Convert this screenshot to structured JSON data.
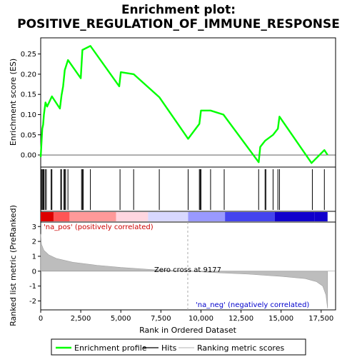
{
  "chart_data": {
    "type": "line",
    "title_line1": "Enrichment plot:",
    "title_line2": "POSITIVE_REGULATION_OF_IMMUNE_RESPONSE",
    "es_panel": {
      "ylabel": "Enrichment score (ES)",
      "ylim": [
        -0.03,
        0.29
      ],
      "yticks": [
        "0.00",
        "0.05",
        "0.10",
        "0.15",
        "0.20",
        "0.25"
      ],
      "ytick_values": [
        0.0,
        0.05,
        0.1,
        0.15,
        0.2,
        0.25
      ],
      "line_color": "#00ff00",
      "series": [
        {
          "name": "Enrichment profile",
          "x": [
            0,
            50,
            100,
            150,
            200,
            300,
            400,
            700,
            1200,
            1300,
            1400,
            1500,
            1700,
            2500,
            2600,
            3100,
            4900,
            5000,
            5800,
            7400,
            9200,
            9900,
            10000,
            10600,
            11400,
            13600,
            13700,
            14000,
            14500,
            14800,
            14900,
            16900,
            17700,
            17900
          ],
          "y": [
            -0.005,
            0.03,
            0.065,
            0.075,
            0.1,
            0.13,
            0.12,
            0.145,
            0.115,
            0.148,
            0.17,
            0.21,
            0.235,
            0.19,
            0.26,
            0.27,
            0.17,
            0.205,
            0.2,
            0.143,
            0.04,
            0.077,
            0.11,
            0.11,
            0.1,
            -0.018,
            0.02,
            0.035,
            0.05,
            0.065,
            0.095,
            -0.02,
            0.012,
            0.0
          ]
        }
      ]
    },
    "hits": {
      "positions": [
        50,
        100,
        150,
        200,
        280,
        350,
        650,
        700,
        1250,
        1300,
        1450,
        1500,
        1550,
        1700,
        2550,
        2600,
        2650,
        3100,
        4950,
        5800,
        7400,
        9200,
        9900,
        9950,
        10000,
        10600,
        11450,
        13600,
        14000,
        14050,
        14500,
        14800,
        14900,
        16950,
        17700
      ]
    },
    "heat_bar": {
      "colors": [
        "#dd0000",
        "#ff5555",
        "#ff9999",
        "#ffd6e0",
        "#d8d8ff",
        "#9999ff",
        "#4444ee",
        "#1100cc"
      ],
      "bounds": [
        0,
        800,
        1800,
        4700,
        6700,
        9200,
        11500,
        14600,
        17100,
        17900
      ]
    },
    "rank_panel": {
      "ylabel": "Ranked list metric (PreRanked)",
      "xlabel": "Rank in Ordered Dataset",
      "ylim": [
        -2.6,
        3.3
      ],
      "yticks": [
        "-2",
        "-1",
        "0",
        "1",
        "2",
        "3"
      ],
      "ytick_values": [
        -2,
        -1,
        0,
        1,
        2,
        3
      ],
      "xlim": [
        0,
        18400
      ],
      "xticks": [
        "0",
        "2,500",
        "5,000",
        "7,500",
        "10,000",
        "12,500",
        "15,000",
        "17,500"
      ],
      "xtick_values": [
        0,
        2500,
        5000,
        7500,
        10000,
        12500,
        15000,
        17500
      ],
      "metric_x": [
        0,
        50,
        200,
        500,
        1000,
        2000,
        3500,
        5000,
        7000,
        9177,
        11000,
        13000,
        15000,
        16500,
        17200,
        17600,
        17800,
        17900
      ],
      "metric_y": [
        2.5,
        1.8,
        1.4,
        1.1,
        0.85,
        0.6,
        0.4,
        0.25,
        0.1,
        0.0,
        -0.1,
        -0.2,
        -0.35,
        -0.5,
        -0.7,
        -1.0,
        -1.6,
        -2.5
      ],
      "zero_cross_label": "Zero cross at 9177",
      "zero_cross": 9177,
      "pos_label": "'na_pos' (positively correlated)",
      "neg_label": "'na_neg' (negatively correlated)",
      "pos_color": "#cc0000",
      "neg_color": "#0000cc"
    },
    "legend": {
      "items": [
        {
          "label": "Enrichment profile",
          "color": "#00ff00",
          "kind": "line"
        },
        {
          "label": "Hits",
          "color": "#000000",
          "kind": "line"
        },
        {
          "label": "Ranking metric scores",
          "color": "#c0c0c0",
          "kind": "line"
        }
      ],
      "placement": "bottom"
    }
  }
}
